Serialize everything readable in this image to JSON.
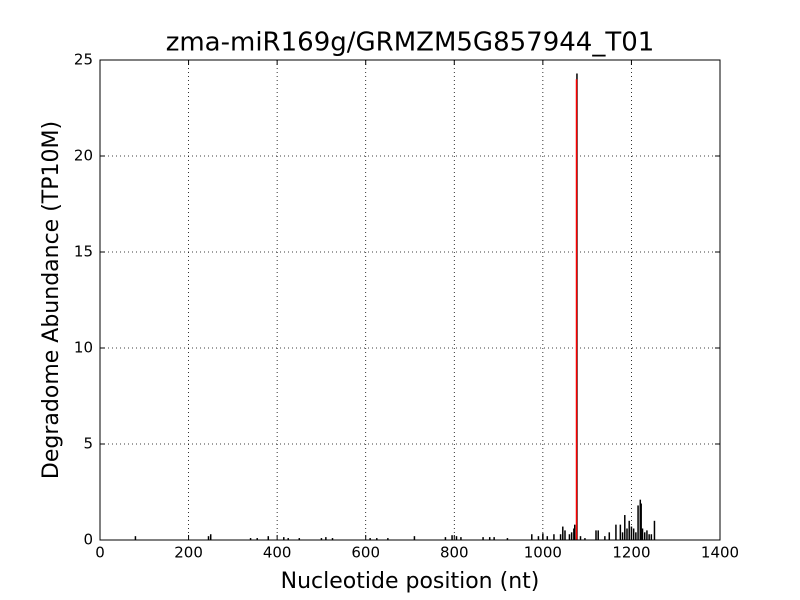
{
  "chart_data": {
    "type": "stem",
    "title": "zma-miR169g/GRMZM5G857944_T01",
    "x_label": "Nucleotide position (nt)",
    "y_label": "Degradome Abundance (TP10M)",
    "xlim": [
      0,
      1400
    ],
    "xticks": [
      0,
      200,
      400,
      600,
      800,
      1000,
      1200,
      1400
    ],
    "ylim": [
      0,
      25
    ],
    "yticks": [
      0,
      5,
      10,
      15,
      20,
      25
    ],
    "grid": true,
    "series": [
      {
        "color": "#000000",
        "x": [
          80,
          245,
          250,
          340,
          355,
          380,
          415,
          425,
          450,
          500,
          510,
          525,
          610,
          625,
          650,
          710,
          780,
          795,
          805,
          815,
          865,
          880,
          890,
          920,
          975,
          990,
          1000,
          1010,
          1025,
          1040,
          1045,
          1050,
          1060,
          1065,
          1070,
          1072,
          1077,
          1085,
          1095,
          1120,
          1125,
          1140,
          1150,
          1165,
          1175,
          1180,
          1185,
          1190,
          1195,
          1200,
          1205,
          1210,
          1215,
          1220,
          1222,
          1225,
          1230,
          1235,
          1240,
          1245,
          1252
        ],
        "values": [
          0.2,
          0.2,
          0.3,
          0.1,
          0.1,
          0.2,
          0.15,
          0.1,
          0.1,
          0.1,
          0.15,
          0.1,
          0.1,
          0.1,
          0.1,
          0.2,
          0.15,
          0.25,
          0.2,
          0.15,
          0.15,
          0.15,
          0.15,
          0.1,
          0.3,
          0.2,
          0.35,
          0.2,
          0.3,
          0.3,
          0.7,
          0.5,
          0.3,
          0.4,
          0.6,
          0.8,
          24.3,
          0.2,
          0.1,
          0.5,
          0.5,
          0.2,
          0.4,
          0.8,
          0.8,
          0.4,
          1.3,
          0.6,
          1.0,
          0.7,
          0.6,
          0.4,
          1.8,
          2.1,
          1.9,
          0.6,
          0.4,
          0.5,
          0.3,
          0.3,
          1.0
        ]
      },
      {
        "color": "#ff0000",
        "x": [
          1076
        ],
        "values": [
          24.0
        ]
      }
    ]
  }
}
